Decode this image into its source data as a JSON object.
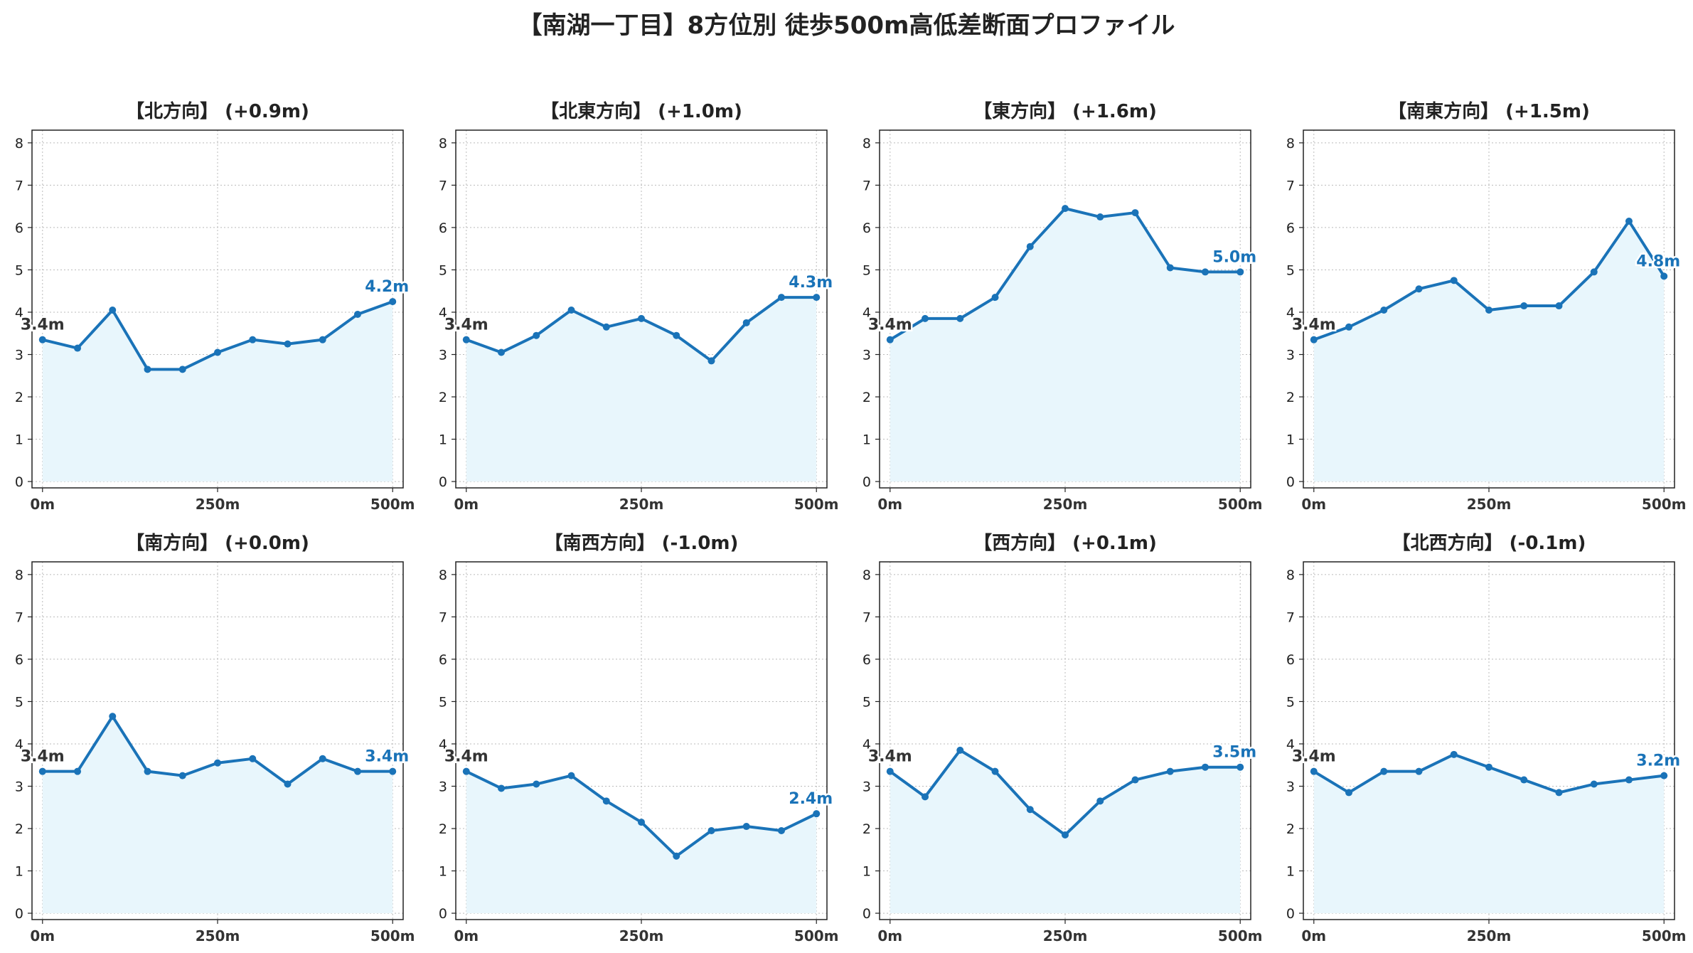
{
  "title": "【南湖一丁目】8方位別 徒歩500m高低差断面プロファイル",
  "colors": {
    "line": "#1a73b8",
    "fill": "#e8f6fc",
    "start_label": "#333333",
    "end_label": "#1a73b8",
    "grid": "#bbbbbb"
  },
  "chart_data": [
    {
      "type": "area",
      "title": "【北方向】 (+0.9m)",
      "x": [
        0,
        50,
        100,
        150,
        200,
        250,
        300,
        350,
        400,
        450,
        500
      ],
      "values": [
        3.35,
        3.15,
        4.05,
        2.65,
        2.65,
        3.05,
        3.35,
        3.25,
        3.35,
        3.95,
        4.25
      ],
      "xticks": [
        "0m",
        "250m",
        "500m"
      ],
      "yticks": [
        "0",
        "1",
        "2",
        "3",
        "4",
        "5",
        "6",
        "7",
        "8"
      ],
      "xlim": [
        -15,
        515
      ],
      "ylim": [
        -0.15,
        8.3
      ],
      "grid": true,
      "start_label": "3.4m",
      "end_label": "4.2m"
    },
    {
      "type": "area",
      "title": "【北東方向】 (+1.0m)",
      "x": [
        0,
        50,
        100,
        150,
        200,
        250,
        300,
        350,
        400,
        450,
        500
      ],
      "values": [
        3.35,
        3.05,
        3.45,
        4.05,
        3.65,
        3.85,
        3.45,
        2.85,
        3.75,
        4.35,
        4.35
      ],
      "xticks": [
        "0m",
        "250m",
        "500m"
      ],
      "yticks": [
        "0",
        "1",
        "2",
        "3",
        "4",
        "5",
        "6",
        "7",
        "8"
      ],
      "xlim": [
        -15,
        515
      ],
      "ylim": [
        -0.15,
        8.3
      ],
      "grid": true,
      "start_label": "3.4m",
      "end_label": "4.3m"
    },
    {
      "type": "area",
      "title": "【東方向】 (+1.6m)",
      "x": [
        0,
        50,
        100,
        150,
        200,
        250,
        300,
        350,
        400,
        450,
        500
      ],
      "values": [
        3.35,
        3.85,
        3.85,
        4.35,
        5.55,
        6.45,
        6.25,
        6.35,
        5.05,
        4.95,
        4.95
      ],
      "xticks": [
        "0m",
        "250m",
        "500m"
      ],
      "yticks": [
        "0",
        "1",
        "2",
        "3",
        "4",
        "5",
        "6",
        "7",
        "8"
      ],
      "xlim": [
        -15,
        515
      ],
      "ylim": [
        -0.15,
        8.3
      ],
      "grid": true,
      "start_label": "3.4m",
      "end_label": "5.0m"
    },
    {
      "type": "area",
      "title": "【南東方向】 (+1.5m)",
      "x": [
        0,
        50,
        100,
        150,
        200,
        250,
        300,
        350,
        400,
        450,
        500
      ],
      "values": [
        3.35,
        3.65,
        4.05,
        4.55,
        4.75,
        4.05,
        4.15,
        4.15,
        4.95,
        6.15,
        4.85
      ],
      "xticks": [
        "0m",
        "250m",
        "500m"
      ],
      "yticks": [
        "0",
        "1",
        "2",
        "3",
        "4",
        "5",
        "6",
        "7",
        "8"
      ],
      "xlim": [
        -15,
        515
      ],
      "ylim": [
        -0.15,
        8.3
      ],
      "grid": true,
      "start_label": "3.4m",
      "end_label": "4.8m"
    },
    {
      "type": "area",
      "title": "【南方向】 (+0.0m)",
      "x": [
        0,
        50,
        100,
        150,
        200,
        250,
        300,
        350,
        400,
        450,
        500
      ],
      "values": [
        3.35,
        3.35,
        4.65,
        3.35,
        3.25,
        3.55,
        3.65,
        3.05,
        3.65,
        3.35,
        3.35
      ],
      "xticks": [
        "0m",
        "250m",
        "500m"
      ],
      "yticks": [
        "0",
        "1",
        "2",
        "3",
        "4",
        "5",
        "6",
        "7",
        "8"
      ],
      "xlim": [
        -15,
        515
      ],
      "ylim": [
        -0.15,
        8.3
      ],
      "grid": true,
      "start_label": "3.4m",
      "end_label": "3.4m"
    },
    {
      "type": "area",
      "title": "【南西方向】 (-1.0m)",
      "x": [
        0,
        50,
        100,
        150,
        200,
        250,
        300,
        350,
        400,
        450,
        500
      ],
      "values": [
        3.35,
        2.95,
        3.05,
        3.25,
        2.65,
        2.15,
        1.35,
        1.95,
        2.05,
        1.95,
        2.35
      ],
      "xticks": [
        "0m",
        "250m",
        "500m"
      ],
      "yticks": [
        "0",
        "1",
        "2",
        "3",
        "4",
        "5",
        "6",
        "7",
        "8"
      ],
      "xlim": [
        -15,
        515
      ],
      "ylim": [
        -0.15,
        8.3
      ],
      "grid": true,
      "start_label": "3.4m",
      "end_label": "2.4m"
    },
    {
      "type": "area",
      "title": "【西方向】 (+0.1m)",
      "x": [
        0,
        50,
        100,
        150,
        200,
        250,
        300,
        350,
        400,
        450,
        500
      ],
      "values": [
        3.35,
        2.75,
        3.85,
        3.35,
        2.45,
        1.85,
        2.65,
        3.15,
        3.35,
        3.45,
        3.45
      ],
      "xticks": [
        "0m",
        "250m",
        "500m"
      ],
      "yticks": [
        "0",
        "1",
        "2",
        "3",
        "4",
        "5",
        "6",
        "7",
        "8"
      ],
      "xlim": [
        -15,
        515
      ],
      "ylim": [
        -0.15,
        8.3
      ],
      "grid": true,
      "start_label": "3.4m",
      "end_label": "3.5m"
    },
    {
      "type": "area",
      "title": "【北西方向】 (-0.1m)",
      "x": [
        0,
        50,
        100,
        150,
        200,
        250,
        300,
        350,
        400,
        450,
        500
      ],
      "values": [
        3.35,
        2.85,
        3.35,
        3.35,
        3.75,
        3.45,
        3.15,
        2.85,
        3.05,
        3.15,
        3.25
      ],
      "xticks": [
        "0m",
        "250m",
        "500m"
      ],
      "yticks": [
        "0",
        "1",
        "2",
        "3",
        "4",
        "5",
        "6",
        "7",
        "8"
      ],
      "xlim": [
        -15,
        515
      ],
      "ylim": [
        -0.15,
        8.3
      ],
      "grid": true,
      "start_label": "3.4m",
      "end_label": "3.2m"
    }
  ]
}
